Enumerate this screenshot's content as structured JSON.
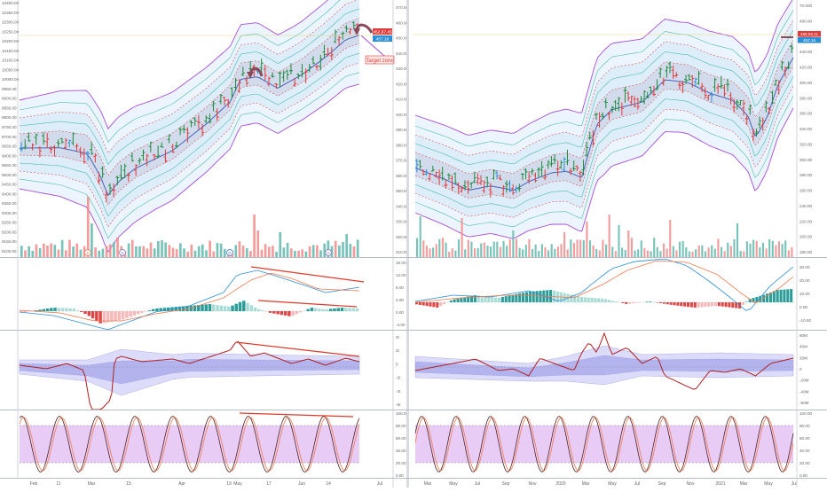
{
  "colors": {
    "up": "#1e8a3c",
    "down": "#e23b3b",
    "neutral": "#2b8fd6",
    "ma": "#4a64b8",
    "outer_band": "#a64dd8",
    "mid_band": "#4bbca6",
    "inner_band": "#e05050",
    "vol_up": "#5fb8ad",
    "vol_down": "#f08b8b",
    "macd_line": "#2b8fd6",
    "signal_line": "#f07a50",
    "hist_pos": "#2a9d99",
    "hist_neg": "#e04545",
    "osc_line": "#b02020",
    "stoch_fill": "#e0b6f2",
    "trend_line": "#e03a2a"
  },
  "left_chart": {
    "price_ticks": [
      "10400.00",
      "10350.00",
      "10300.00",
      "10250.00",
      "10200.00",
      "10150.00",
      "10100.00",
      "10050.00",
      "10000.00",
      "9950.00",
      "9900.00",
      "9850.00",
      "9800.00",
      "9750.00",
      "9700.00",
      "9650.00",
      "9600.00",
      "9550.00",
      "9500.00",
      "9450.00",
      "9400.00",
      "9350.00",
      "9300.00",
      "9250.00",
      "9200.00",
      "9150.00",
      "9100.00"
    ],
    "secondary_ticks": [
      "470.00",
      "460.00",
      "450.00",
      "440.00",
      "430.00",
      "420.00",
      "410.00",
      "400.00",
      "390.00",
      "380.00",
      "370.00",
      "360.00",
      "350.00",
      "340.00",
      "330.00",
      "320.00",
      "310.00"
    ],
    "price_badges": [
      {
        "text": "452.87.45",
        "color": "#e23b3b"
      },
      {
        "text": "457.18",
        "color": "#2b8fd6"
      }
    ],
    "annotation": "Target zone",
    "event_markers": [
      "E",
      "D",
      "D",
      "D"
    ],
    "time_labels": [
      "Feb",
      "11",
      "Mar",
      "15",
      "Apr",
      "19",
      "May",
      "17",
      "Jun",
      "14",
      "Jul"
    ],
    "macd_ticks": [
      "16.00",
      "12.00",
      "8.00",
      "4.00",
      "0.00",
      "-4.00"
    ],
    "osc_ticks": [
      "4t",
      "2t",
      "0",
      "-2t",
      "-4t",
      "-6t"
    ],
    "stoch_ticks": [
      "100.00",
      "80.00",
      "60.00",
      "40.00",
      "20.00",
      "0.00"
    ]
  },
  "right_chart": {
    "price_ticks": [
      "70.000",
      "480.00",
      "460.00",
      "440.00",
      "420.00",
      "400.00",
      "380.00",
      "360.00",
      "340.00",
      "320.00",
      "300.00",
      "280.00",
      "260.00",
      "240.00",
      "220.00",
      "200.00",
      "180.00"
    ],
    "price_badges": [
      {
        "text": "459.93.11",
        "color": "#e23b3b"
      },
      {
        "text": "452.16",
        "color": "#2b8fd6"
      }
    ],
    "time_labels": [
      "Mar",
      "May",
      "Jul",
      "Sep",
      "Nov",
      "2020",
      "Mar",
      "May",
      "Jul",
      "Sep",
      "Nov",
      "2021",
      "Mar",
      "May",
      "Jul"
    ],
    "macd_ticks": [
      "30.00",
      "20.00",
      "10.00",
      "0.00",
      "-10.00"
    ],
    "osc_ticks": [
      "60M",
      "40M",
      "20M",
      "0",
      "-20M",
      "-40M",
      "-60M"
    ],
    "stoch_ticks": [
      "100.00",
      "80.00",
      "60.00",
      "40.00",
      "20.00",
      "0.00"
    ]
  },
  "chart_data": [
    {
      "type": "line",
      "panel": "left price (candlestick with envelope bands, daily)",
      "x": [
        "Feb",
        "11",
        "Mar",
        "15",
        "Apr",
        "19",
        "May",
        "17",
        "Jun",
        "14",
        "Jul"
      ],
      "close_approx": [
        9640,
        9660,
        9430,
        9520,
        9620,
        9800,
        10050,
        10000,
        9970,
        10190,
        10280
      ],
      "ylim": [
        9080,
        10420
      ],
      "annotation": "Target zone"
    },
    {
      "type": "line",
      "panel": "right price (candlestick with envelope bands, weekly)",
      "x": [
        "Mar",
        "May",
        "Jul",
        "Sep",
        "Nov",
        "2020",
        "Mar",
        "May",
        "Jul",
        "Sep",
        "Nov",
        "2021",
        "Mar",
        "May",
        "Jul"
      ],
      "close_approx": [
        295,
        340,
        350,
        320,
        360,
        355,
        390,
        430,
        440,
        420,
        410,
        400,
        330,
        380,
        450
      ],
      "ylim": [
        170,
        480
      ]
    }
  ]
}
